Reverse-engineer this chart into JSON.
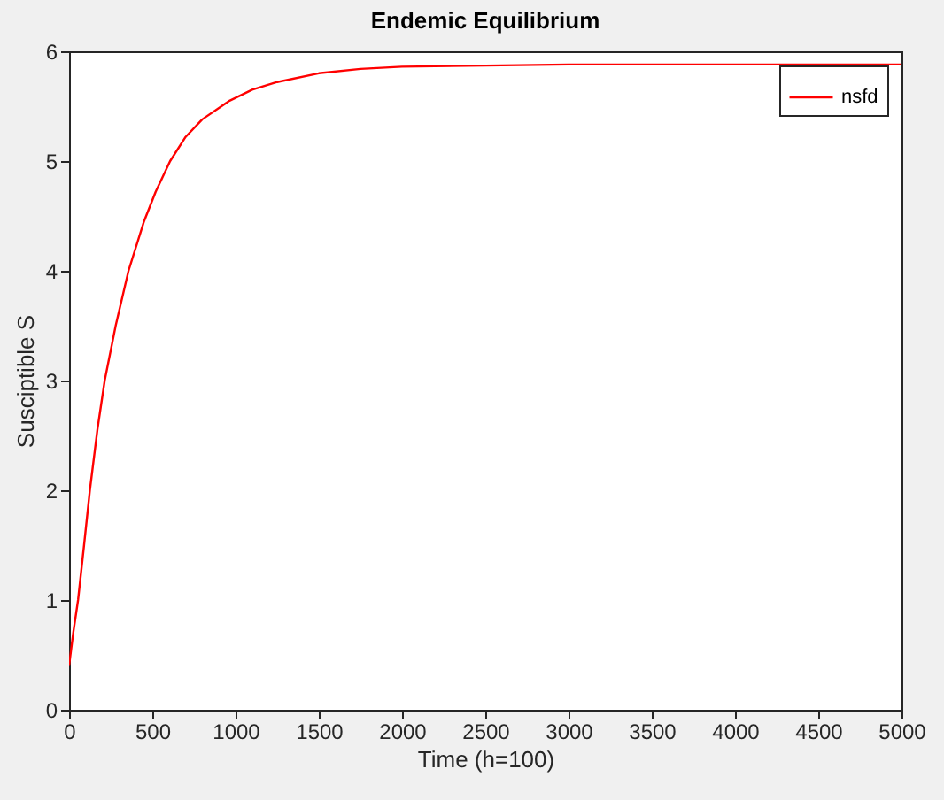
{
  "chart_data": {
    "type": "line",
    "title": "Endemic Equilibrium",
    "xlabel": "Time (h=100)",
    "ylabel": "Susciptible S",
    "x": [
      0,
      25,
      54,
      90,
      125,
      170,
      214,
      280,
      357,
      450,
      520,
      607,
      700,
      800,
      964,
      1100,
      1250,
      1500,
      1750,
      2000,
      2500,
      3000,
      4000,
      5000
    ],
    "series": [
      {
        "name": "nsfd",
        "color": "#ff0000",
        "values": [
          0.4,
          0.7,
          1.0,
          1.5,
          2.0,
          2.55,
          3.0,
          3.5,
          4.0,
          4.45,
          4.72,
          5.0,
          5.22,
          5.38,
          5.55,
          5.65,
          5.72,
          5.8,
          5.84,
          5.86,
          5.87,
          5.88,
          5.88,
          5.88
        ]
      }
    ],
    "xlim": [
      0,
      5000
    ],
    "ylim": [
      0,
      6
    ],
    "xticks": [
      0,
      500,
      1000,
      1500,
      2000,
      2500,
      3000,
      3500,
      4000,
      4500,
      5000
    ],
    "yticks": [
      0,
      1,
      2,
      3,
      4,
      5,
      6
    ],
    "grid": false,
    "legend": "top right",
    "line_style": "solid",
    "marker": "none"
  }
}
